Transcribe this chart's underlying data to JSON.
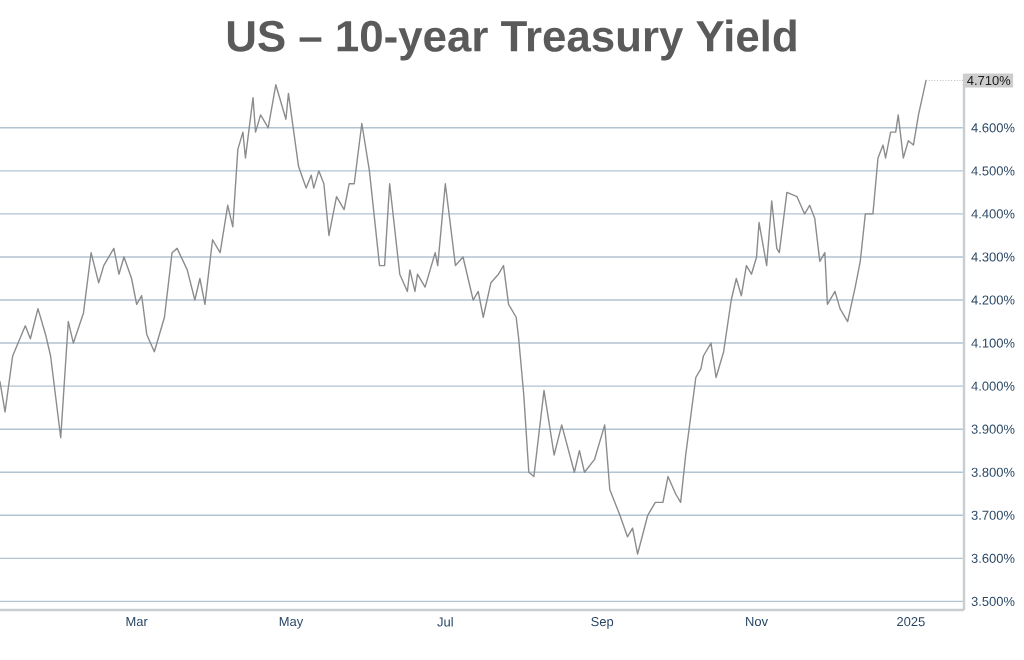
{
  "chart_data": {
    "type": "line",
    "title": "US – 10-year Treasury Yield",
    "x": [
      "2024-01-07",
      "2024-01-09",
      "2024-01-12",
      "2024-01-17",
      "2024-01-19",
      "2024-01-22",
      "2024-01-25",
      "2024-01-27",
      "2024-01-31",
      "2024-02-03",
      "2024-02-05",
      "2024-02-09",
      "2024-02-12",
      "2024-02-15",
      "2024-02-17",
      "2024-02-21",
      "2024-02-23",
      "2024-02-25",
      "2024-02-28",
      "2024-03-01",
      "2024-03-03",
      "2024-03-05",
      "2024-03-08",
      "2024-03-12",
      "2024-03-15",
      "2024-03-17",
      "2024-03-21",
      "2024-03-24",
      "2024-03-26",
      "2024-03-28",
      "2024-03-31",
      "2024-04-03",
      "2024-04-06",
      "2024-04-08",
      "2024-04-10",
      "2024-04-12",
      "2024-04-13",
      "2024-04-16",
      "2024-04-17",
      "2024-04-19",
      "2024-04-22",
      "2024-04-25",
      "2024-04-29",
      "2024-04-30",
      "2024-05-04",
      "2024-05-07",
      "2024-05-09",
      "2024-05-10",
      "2024-05-12",
      "2024-05-14",
      "2024-05-16",
      "2024-05-19",
      "2024-05-22",
      "2024-05-24",
      "2024-05-26",
      "2024-05-29",
      "2024-06-01",
      "2024-06-05",
      "2024-06-07",
      "2024-06-09",
      "2024-06-13",
      "2024-06-16",
      "2024-06-17",
      "2024-06-19",
      "2024-06-20",
      "2024-06-23",
      "2024-06-27",
      "2024-06-28",
      "2024-07-01",
      "2024-07-05",
      "2024-07-08",
      "2024-07-12",
      "2024-07-14",
      "2024-07-16",
      "2024-07-19",
      "2024-07-22",
      "2024-07-24",
      "2024-07-26",
      "2024-07-29",
      "2024-07-30",
      "2024-08-01",
      "2024-08-03",
      "2024-08-05",
      "2024-08-09",
      "2024-08-13",
      "2024-08-16",
      "2024-08-21",
      "2024-08-23",
      "2024-08-25",
      "2024-08-29",
      "2024-09-02",
      "2024-09-04",
      "2024-09-08",
      "2024-09-11",
      "2024-09-13",
      "2024-09-15",
      "2024-09-19",
      "2024-09-22",
      "2024-09-25",
      "2024-09-27",
      "2024-09-30",
      "2024-10-02",
      "2024-10-04",
      "2024-10-08",
      "2024-10-10",
      "2024-10-11",
      "2024-10-14",
      "2024-10-16",
      "2024-10-19",
      "2024-10-22",
      "2024-10-24",
      "2024-10-26",
      "2024-10-28",
      "2024-10-30",
      "2024-11-01",
      "2024-11-02",
      "2024-11-05",
      "2024-11-07",
      "2024-11-09",
      "2024-11-10",
      "2024-11-13",
      "2024-11-17",
      "2024-11-20",
      "2024-11-22",
      "2024-11-24",
      "2024-11-26",
      "2024-11-28",
      "2024-11-29",
      "2024-12-02",
      "2024-12-04",
      "2024-12-07",
      "2024-12-10",
      "2024-12-12",
      "2024-12-14",
      "2024-12-17",
      "2024-12-19",
      "2024-12-21",
      "2024-12-22",
      "2024-12-24",
      "2024-12-26",
      "2024-12-27",
      "2024-12-29",
      "2024-12-31",
      "2025-01-02",
      "2025-01-04",
      "2025-01-07"
    ],
    "series": [
      {
        "color": "#8c8c8c",
        "values": [
          4.01,
          3.94,
          4.07,
          4.14,
          4.11,
          4.18,
          4.12,
          4.07,
          3.88,
          4.15,
          4.1,
          4.17,
          4.31,
          4.24,
          4.28,
          4.32,
          4.26,
          4.3,
          4.25,
          4.19,
          4.21,
          4.12,
          4.08,
          4.16,
          4.31,
          4.32,
          4.27,
          4.2,
          4.25,
          4.19,
          4.34,
          4.31,
          4.42,
          4.37,
          4.55,
          4.59,
          4.53,
          4.67,
          4.59,
          4.63,
          4.6,
          4.7,
          4.62,
          4.68,
          4.51,
          4.46,
          4.49,
          4.46,
          4.5,
          4.47,
          4.35,
          4.44,
          4.41,
          4.47,
          4.47,
          4.61,
          4.5,
          4.28,
          4.28,
          4.47,
          4.26,
          4.22,
          4.27,
          4.22,
          4.26,
          4.23,
          4.31,
          4.28,
          4.47,
          4.28,
          4.3,
          4.2,
          4.22,
          4.16,
          4.24,
          4.26,
          4.28,
          4.19,
          4.16,
          4.11,
          3.98,
          3.8,
          3.79,
          3.99,
          3.84,
          3.91,
          3.8,
          3.85,
          3.8,
          3.83,
          3.91,
          3.76,
          3.7,
          3.65,
          3.67,
          3.61,
          3.7,
          3.73,
          3.73,
          3.79,
          3.75,
          3.73,
          3.84,
          4.02,
          4.04,
          4.07,
          4.1,
          4.02,
          4.08,
          4.2,
          4.25,
          4.21,
          4.28,
          4.26,
          4.3,
          4.38,
          4.28,
          4.43,
          4.32,
          4.31,
          4.45,
          4.44,
          4.4,
          4.42,
          4.39,
          4.29,
          4.31,
          4.19,
          4.22,
          4.18,
          4.15,
          4.23,
          4.29,
          4.4,
          4.4,
          4.53,
          4.56,
          4.53,
          4.59,
          4.59,
          4.63,
          4.53,
          4.57,
          4.56,
          4.63,
          4.71
        ]
      }
    ],
    "xlim": [
      "2024-01-07",
      "2025-01-22"
    ],
    "xticks": [
      {
        "value": "2024-03-01",
        "label": "Mar"
      },
      {
        "value": "2024-05-01",
        "label": "May"
      },
      {
        "value": "2024-07-01",
        "label": "Jul"
      },
      {
        "value": "2024-09-01",
        "label": "Sep"
      },
      {
        "value": "2024-11-01",
        "label": "Nov"
      },
      {
        "value": "2025-01-01",
        "label": "2025"
      }
    ],
    "ylim": [
      3.48,
      4.725
    ],
    "yticks": [
      {
        "value": 3.5,
        "label": "3.500%"
      },
      {
        "value": 3.6,
        "label": "3.600%"
      },
      {
        "value": 3.7,
        "label": "3.700%"
      },
      {
        "value": 3.8,
        "label": "3.800%"
      },
      {
        "value": 3.9,
        "label": "3.900%"
      },
      {
        "value": 4.0,
        "label": "4.000%"
      },
      {
        "value": 4.1,
        "label": "4.100%"
      },
      {
        "value": 4.2,
        "label": "4.200%"
      },
      {
        "value": 4.3,
        "label": "4.300%"
      },
      {
        "value": 4.4,
        "label": "4.400%"
      },
      {
        "value": 4.5,
        "label": "4.500%"
      },
      {
        "value": 4.6,
        "label": "4.600%"
      }
    ],
    "annotations": [
      "4.710%"
    ],
    "grid": "y",
    "legend": false,
    "marker": "none",
    "line_style": "solid"
  }
}
